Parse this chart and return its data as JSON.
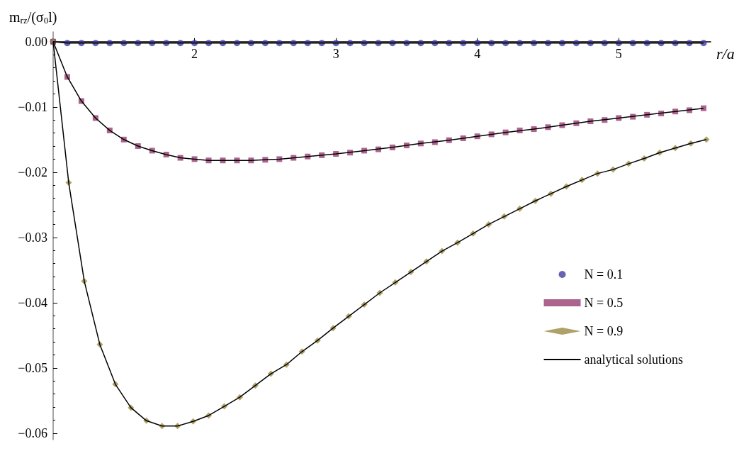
{
  "chart_data": {
    "type": "scatter",
    "xlabel": "r/a",
    "ylabel": "m$_{rz}$/(σ$_{0}$l)",
    "xlim": [
      1,
      5.65
    ],
    "xticks": [
      2,
      3,
      4,
      5
    ],
    "ylim": [
      -0.061,
      0.0015
    ],
    "yticks": [
      {
        "value": 0,
        "label": "0.00"
      },
      {
        "value": -0.01,
        "label": "−0.01"
      },
      {
        "value": -0.02,
        "label": "−0.02"
      },
      {
        "value": -0.03,
        "label": "−0.03"
      },
      {
        "value": -0.04,
        "label": "−0.04"
      },
      {
        "value": -0.05,
        "label": "−0.05"
      },
      {
        "value": -0.06,
        "label": "−0.06"
      }
    ],
    "grid": false,
    "legend": "right",
    "series": [
      {
        "name": "N = 0.1",
        "type": "scatter",
        "marker": "circle",
        "color": "#3f3f9f",
        "x": [
          1,
          1.1,
          1.2,
          1.3,
          1.4,
          1.5,
          1.6,
          1.7,
          1.8,
          1.9,
          2,
          2.1,
          2.2,
          2.3,
          2.4,
          2.5,
          2.6,
          2.7,
          2.8,
          2.9,
          3,
          3.1,
          3.2,
          3.3,
          3.4,
          3.5,
          3.6,
          3.7,
          3.8,
          3.9,
          4,
          4.1,
          4.2,
          4.3,
          4.4,
          4.5,
          4.6,
          4.7,
          4.8,
          4.9,
          5,
          5.1,
          5.2,
          5.3,
          5.4,
          5.5,
          5.6
        ],
        "values": [
          0,
          -0.0002,
          -0.0002,
          -0.0002,
          -0.0002,
          -0.0002,
          -0.0002,
          -0.0002,
          -0.0002,
          -0.0002,
          -0.0002,
          -0.0002,
          -0.0002,
          -0.0002,
          -0.0002,
          -0.0002,
          -0.0002,
          -0.0002,
          -0.0002,
          -0.0002,
          -0.0002,
          -0.0002,
          -0.0002,
          -0.0002,
          -0.0002,
          -0.0002,
          -0.0002,
          -0.0002,
          -0.0002,
          -0.0002,
          -0.0002,
          -0.0002,
          -0.0002,
          -0.0002,
          -0.0002,
          -0.0002,
          -0.0002,
          -0.0002,
          -0.0002,
          -0.0002,
          -0.0002,
          -0.0002,
          -0.0002,
          -0.0002,
          -0.0002,
          -0.0002,
          -0.0002
        ]
      },
      {
        "name": "N = 0.5",
        "type": "scatter",
        "marker": "square",
        "color": "#963d71",
        "x": [
          1,
          1.1,
          1.2,
          1.3,
          1.4,
          1.5,
          1.6,
          1.7,
          1.8,
          1.9,
          2,
          2.1,
          2.2,
          2.3,
          2.4,
          2.5,
          2.6,
          2.7,
          2.8,
          2.9,
          3,
          3.1,
          3.2,
          3.3,
          3.4,
          3.5,
          3.6,
          3.7,
          3.8,
          3.9,
          4,
          4.1,
          4.2,
          4.3,
          4.4,
          4.5,
          4.6,
          4.7,
          4.8,
          4.9,
          5,
          5.1,
          5.2,
          5.3,
          5.4,
          5.5,
          5.6
        ],
        "values": [
          0,
          -0.0054,
          -0.0091,
          -0.0117,
          -0.0136,
          -0.015,
          -0.016,
          -0.0167,
          -0.0173,
          -0.0178,
          -0.018,
          -0.0182,
          -0.0182,
          -0.0182,
          -0.0182,
          -0.0181,
          -0.018,
          -0.0178,
          -0.0176,
          -0.0174,
          -0.0172,
          -0.017,
          -0.0167,
          -0.0165,
          -0.0162,
          -0.0159,
          -0.0156,
          -0.0154,
          -0.0151,
          -0.0148,
          -0.0145,
          -0.0142,
          -0.0139,
          -0.0136,
          -0.0134,
          -0.0131,
          -0.0128,
          -0.0125,
          -0.0122,
          -0.012,
          -0.0117,
          -0.0115,
          -0.0112,
          -0.011,
          -0.0107,
          -0.0105,
          -0.0102
        ]
      },
      {
        "name": "N = 0.9",
        "type": "scatter",
        "marker": "diamond",
        "color": "#9b8a42",
        "x": [
          1,
          1.11,
          1.22,
          1.33,
          1.44,
          1.55,
          1.66,
          1.77,
          1.88,
          1.99,
          2.1,
          2.21,
          2.32,
          2.43,
          2.54,
          2.65,
          2.76,
          2.87,
          2.98,
          3.09,
          3.2,
          3.31,
          3.42,
          3.53,
          3.64,
          3.75,
          3.86,
          3.97,
          4.08,
          4.19,
          4.3,
          4.41,
          4.52,
          4.63,
          4.74,
          4.85,
          4.96,
          5.07,
          5.18,
          5.29,
          5.4,
          5.51,
          5.62
        ],
        "values": [
          0,
          -0.0216,
          -0.0367,
          -0.0464,
          -0.0525,
          -0.0561,
          -0.0581,
          -0.0589,
          -0.0589,
          -0.0582,
          -0.0573,
          -0.0559,
          -0.0545,
          -0.0527,
          -0.0509,
          -0.0495,
          -0.0475,
          -0.0458,
          -0.0439,
          -0.0421,
          -0.0403,
          -0.0385,
          -0.0369,
          -0.0353,
          -0.0337,
          -0.0321,
          -0.0308,
          -0.0294,
          -0.028,
          -0.0268,
          -0.0256,
          -0.0244,
          -0.0233,
          -0.0222,
          -0.0212,
          -0.0202,
          -0.0196,
          -0.0187,
          -0.0179,
          -0.017,
          -0.0163,
          -0.0156,
          -0.015
        ]
      },
      {
        "name": "analytical solutions",
        "type": "line",
        "marker": "none",
        "line_style": "solid",
        "color": "#000000",
        "x": [
          1,
          1.1,
          1.2,
          1.3,
          1.4,
          1.5,
          1.6,
          1.7,
          1.8,
          1.9,
          2,
          2.5,
          3,
          3.5,
          4,
          4.5,
          5,
          5.6
        ],
        "values": [
          0,
          -0.0002,
          -0.0002,
          -0.0002,
          -0.0002,
          -0.0002,
          -0.0002,
          -0.0002,
          -0.0002,
          -0.0002,
          -0.0002,
          -0.0002,
          -0.0002,
          -0.0002,
          -0.0002,
          -0.0002,
          -0.0002,
          -0.0002
        ]
      },
      {
        "type": "line",
        "marker": "none",
        "line_style": "solid",
        "color": "#000000",
        "x": [
          1,
          1.1,
          1.2,
          1.3,
          1.4,
          1.5,
          1.6,
          1.7,
          1.8,
          1.9,
          2,
          2.1,
          2.2,
          2.3,
          2.4,
          2.5,
          2.6,
          2.8,
          3,
          3.2,
          3.4,
          3.6,
          3.8,
          4,
          4.2,
          4.4,
          4.6,
          4.8,
          5,
          5.2,
          5.4,
          5.6
        ],
        "values": [
          0,
          -0.0054,
          -0.0091,
          -0.0117,
          -0.0136,
          -0.015,
          -0.016,
          -0.0167,
          -0.0173,
          -0.0178,
          -0.018,
          -0.0182,
          -0.0182,
          -0.0182,
          -0.0182,
          -0.0181,
          -0.018,
          -0.0176,
          -0.0172,
          -0.0167,
          -0.0162,
          -0.0156,
          -0.0151,
          -0.0145,
          -0.0139,
          -0.0134,
          -0.0128,
          -0.0122,
          -0.0117,
          -0.0112,
          -0.0107,
          -0.0102
        ]
      },
      {
        "type": "line",
        "marker": "none",
        "line_style": "solid",
        "color": "#000000",
        "x": [
          1,
          1.11,
          1.22,
          1.33,
          1.44,
          1.55,
          1.66,
          1.77,
          1.88,
          1.99,
          2.1,
          2.21,
          2.32,
          2.43,
          2.54,
          2.65,
          2.76,
          2.87,
          2.98,
          3.09,
          3.2,
          3.31,
          3.42,
          3.53,
          3.64,
          3.75,
          3.86,
          3.97,
          4.08,
          4.19,
          4.3,
          4.41,
          4.52,
          4.63,
          4.74,
          4.85,
          4.96,
          5.07,
          5.18,
          5.29,
          5.4,
          5.51,
          5.62
        ],
        "values": [
          0,
          -0.0216,
          -0.0367,
          -0.0464,
          -0.0525,
          -0.0561,
          -0.0581,
          -0.0589,
          -0.0589,
          -0.0582,
          -0.0573,
          -0.0559,
          -0.0545,
          -0.0527,
          -0.0509,
          -0.0495,
          -0.0475,
          -0.0458,
          -0.0439,
          -0.0421,
          -0.0403,
          -0.0385,
          -0.0369,
          -0.0353,
          -0.0337,
          -0.0321,
          -0.0308,
          -0.0294,
          -0.028,
          -0.0268,
          -0.0256,
          -0.0244,
          -0.0233,
          -0.0222,
          -0.0212,
          -0.0202,
          -0.0196,
          -0.0187,
          -0.0179,
          -0.017,
          -0.0163,
          -0.0156,
          -0.015
        ]
      }
    ]
  }
}
